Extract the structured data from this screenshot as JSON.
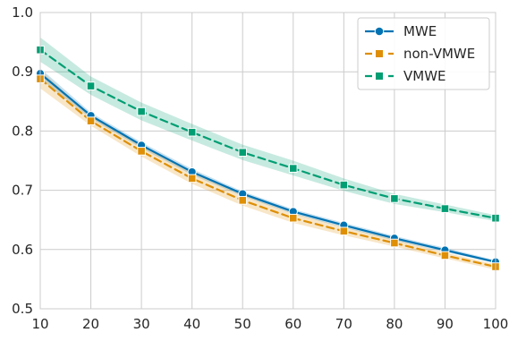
{
  "chart_data": {
    "type": "line",
    "title": "",
    "xlabel": "",
    "ylabel": "",
    "x": [
      10,
      20,
      30,
      40,
      50,
      60,
      70,
      80,
      90,
      100
    ],
    "xlim": [
      10,
      100
    ],
    "ylim": [
      0.5,
      1.0
    ],
    "xticks": [
      "10",
      "20",
      "30",
      "40",
      "50",
      "60",
      "70",
      "80",
      "90",
      "100"
    ],
    "yticks": [
      "0.5",
      "0.6",
      "0.7",
      "0.8",
      "0.9",
      "1.0"
    ],
    "grid": true,
    "legend_position": "top-right",
    "series": [
      {
        "name": "MWE",
        "color": "#0173b2",
        "marker": "circle",
        "linestyle": "solid",
        "values": [
          0.897,
          0.826,
          0.776,
          0.731,
          0.694,
          0.664,
          0.641,
          0.619,
          0.599,
          0.579
        ],
        "ci_lower": [
          0.888,
          0.821,
          0.771,
          0.726,
          0.69,
          0.66,
          0.637,
          0.615,
          0.596,
          0.577
        ],
        "ci_upper": [
          0.906,
          0.831,
          0.781,
          0.736,
          0.698,
          0.668,
          0.645,
          0.623,
          0.603,
          0.582
        ]
      },
      {
        "name": "non-VMWE",
        "color": "#de8f05",
        "marker": "square",
        "linestyle": "dashed",
        "values": [
          0.888,
          0.817,
          0.766,
          0.72,
          0.683,
          0.653,
          0.631,
          0.611,
          0.59,
          0.571
        ],
        "ci_lower": [
          0.872,
          0.809,
          0.757,
          0.711,
          0.674,
          0.645,
          0.624,
          0.605,
          0.585,
          0.566
        ],
        "ci_upper": [
          0.903,
          0.825,
          0.775,
          0.729,
          0.692,
          0.661,
          0.638,
          0.617,
          0.595,
          0.575
        ]
      },
      {
        "name": "VMWE",
        "color": "#029e73",
        "marker": "square",
        "linestyle": "dashed",
        "values": [
          0.937,
          0.876,
          0.833,
          0.798,
          0.764,
          0.737,
          0.709,
          0.686,
          0.669,
          0.653
        ],
        "ci_lower": [
          0.917,
          0.861,
          0.818,
          0.784,
          0.751,
          0.725,
          0.699,
          0.677,
          0.663,
          0.648
        ],
        "ci_upper": [
          0.958,
          0.892,
          0.848,
          0.812,
          0.777,
          0.75,
          0.72,
          0.694,
          0.676,
          0.658
        ]
      }
    ]
  }
}
